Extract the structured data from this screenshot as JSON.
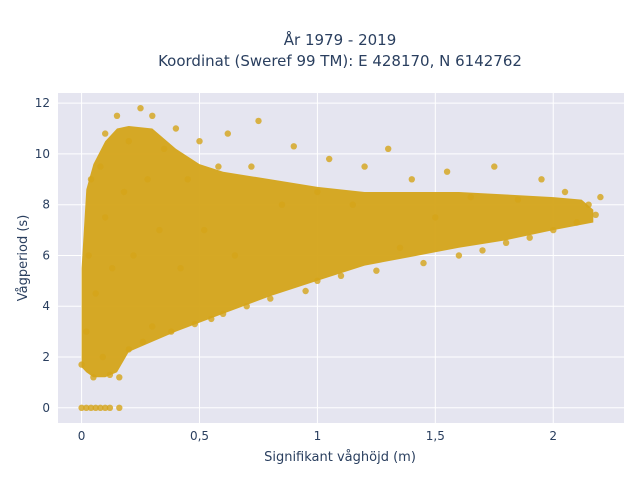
{
  "chart_data": {
    "type": "scatter",
    "title_line1": "År 1979 - 2019",
    "title_line2": "Koordinat (Sweref 99 TM): E 428170, N 6142762",
    "xlabel": "Signifikant våghöjd (m)",
    "ylabel": "Vågperiod (s)",
    "xlim": [
      -0.1,
      2.3
    ],
    "ylim": [
      -0.6,
      12.4
    ],
    "x_ticks": [
      0,
      0.5,
      1,
      1.5,
      2
    ],
    "x_tick_labels": [
      "0",
      "0,5",
      "1",
      "1,5",
      "2"
    ],
    "y_ticks": [
      0,
      2,
      4,
      6,
      8,
      10,
      12
    ],
    "y_tick_labels": [
      "0",
      "2",
      "4",
      "6",
      "8",
      "10",
      "12"
    ],
    "grid": true,
    "marker_color": "#D4A419",
    "background": "#E5E5F0",
    "points": [
      [
        0.0,
        0.0
      ],
      [
        0.02,
        0.0
      ],
      [
        0.04,
        0.0
      ],
      [
        0.06,
        0.0
      ],
      [
        0.08,
        0.0
      ],
      [
        0.1,
        0.0
      ],
      [
        0.12,
        0.0
      ],
      [
        0.16,
        0.0
      ],
      [
        0.0,
        1.7
      ],
      [
        0.02,
        3.0
      ],
      [
        0.03,
        6.0
      ],
      [
        0.04,
        9.0
      ],
      [
        0.05,
        1.2
      ],
      [
        0.06,
        4.5
      ],
      [
        0.08,
        9.5
      ],
      [
        0.09,
        2.0
      ],
      [
        0.1,
        7.5
      ],
      [
        0.1,
        10.8
      ],
      [
        0.12,
        1.3
      ],
      [
        0.13,
        5.5
      ],
      [
        0.15,
        11.5
      ],
      [
        0.16,
        1.2
      ],
      [
        0.18,
        8.5
      ],
      [
        0.2,
        2.3
      ],
      [
        0.2,
        10.5
      ],
      [
        0.22,
        6.0
      ],
      [
        0.25,
        11.8
      ],
      [
        0.26,
        2.6
      ],
      [
        0.28,
        9.0
      ],
      [
        0.3,
        11.5
      ],
      [
        0.3,
        3.2
      ],
      [
        0.33,
        7.0
      ],
      [
        0.35,
        10.2
      ],
      [
        0.38,
        3.0
      ],
      [
        0.4,
        11.0
      ],
      [
        0.42,
        5.5
      ],
      [
        0.45,
        9.0
      ],
      [
        0.48,
        3.3
      ],
      [
        0.5,
        10.5
      ],
      [
        0.52,
        7.0
      ],
      [
        0.55,
        3.5
      ],
      [
        0.58,
        9.5
      ],
      [
        0.6,
        3.7
      ],
      [
        0.62,
        10.8
      ],
      [
        0.65,
        6.0
      ],
      [
        0.7,
        4.0
      ],
      [
        0.72,
        9.5
      ],
      [
        0.75,
        11.3
      ],
      [
        0.8,
        4.3
      ],
      [
        0.85,
        8.0
      ],
      [
        0.9,
        10.3
      ],
      [
        0.95,
        4.6
      ],
      [
        1.0,
        8.5
      ],
      [
        1.0,
        5.0
      ],
      [
        1.05,
        9.8
      ],
      [
        1.1,
        5.2
      ],
      [
        1.15,
        8.0
      ],
      [
        1.2,
        9.5
      ],
      [
        1.25,
        5.4
      ],
      [
        1.3,
        10.2
      ],
      [
        1.35,
        6.3
      ],
      [
        1.4,
        9.0
      ],
      [
        1.45,
        5.7
      ],
      [
        1.5,
        7.5
      ],
      [
        1.55,
        9.3
      ],
      [
        1.6,
        6.0
      ],
      [
        1.65,
        8.3
      ],
      [
        1.7,
        6.2
      ],
      [
        1.75,
        9.5
      ],
      [
        1.8,
        6.5
      ],
      [
        1.85,
        8.2
      ],
      [
        1.9,
        6.7
      ],
      [
        1.95,
        9.0
      ],
      [
        2.0,
        7.0
      ],
      [
        2.05,
        8.5
      ],
      [
        2.1,
        7.3
      ],
      [
        2.15,
        8.0
      ],
      [
        2.18,
        7.6
      ],
      [
        2.2,
        8.3
      ]
    ]
  }
}
